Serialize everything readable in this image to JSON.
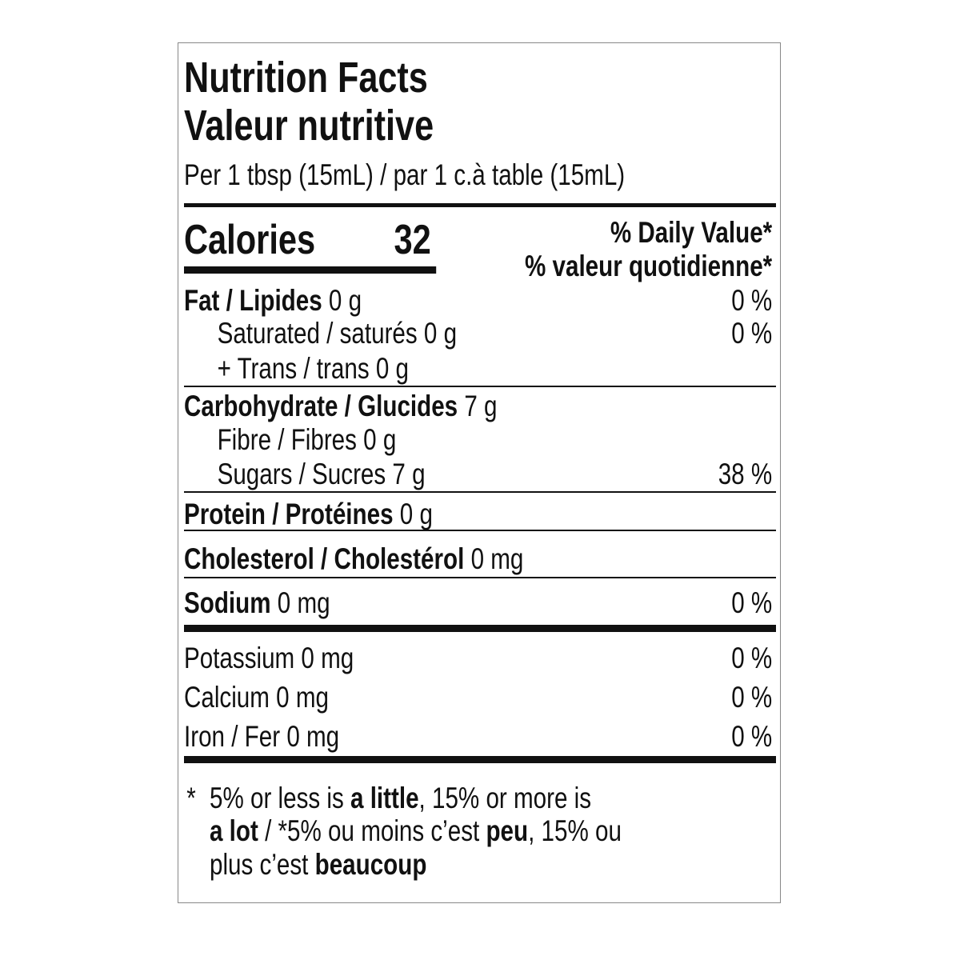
{
  "title_en": "Nutrition Facts",
  "title_fr": "Valeur nutritive",
  "serving": "Per 1 tbsp (15mL) / par 1 c.à table (15mL)",
  "calories": {
    "label": "Calories",
    "value": "32"
  },
  "dv_header_en": "% Daily Value",
  "dv_header_fr": "% valeur quotidienne",
  "asterisk": "*",
  "nutrients": [
    {
      "label": "Fat / Lipides",
      "amount": "0 g",
      "dv": "0 %"
    },
    {
      "label": "Saturated / saturés",
      "amount": "0 g",
      "dv": "0 %"
    },
    {
      "label": "+ Trans / trans",
      "amount": "0 g"
    },
    {
      "label": "Carbohydrate / Glucides",
      "amount": "7 g"
    },
    {
      "label": "Fibre / Fibres",
      "amount": "0 g"
    },
    {
      "label": "Sugars / Sucres",
      "amount": "7 g",
      "dv": "38 %"
    },
    {
      "label": "Protein / Protéines",
      "amount": "0 g"
    },
    {
      "label": "Cholesterol / Cholestérol",
      "amount": "0 mg"
    },
    {
      "label": "Sodium",
      "amount": "0 mg",
      "dv": "0 %"
    },
    {
      "label": "Potassium",
      "amount": "0 mg",
      "dv": "0 %"
    },
    {
      "label": "Calcium",
      "amount": "0 mg",
      "dv": "0 %"
    },
    {
      "label": "Iron / Fer",
      "amount": "0 mg",
      "dv": "0 %"
    }
  ],
  "footnote": {
    "p1": "5% or less is ",
    "b1": "a little",
    "p2": ", 15% or more is",
    "b2": "a lot",
    "p3": " / *5% ou moins c’est ",
    "b3": "peu",
    "p4": ", 15% ou",
    "p5": "plus c’est ",
    "b4": "beaucoup"
  }
}
